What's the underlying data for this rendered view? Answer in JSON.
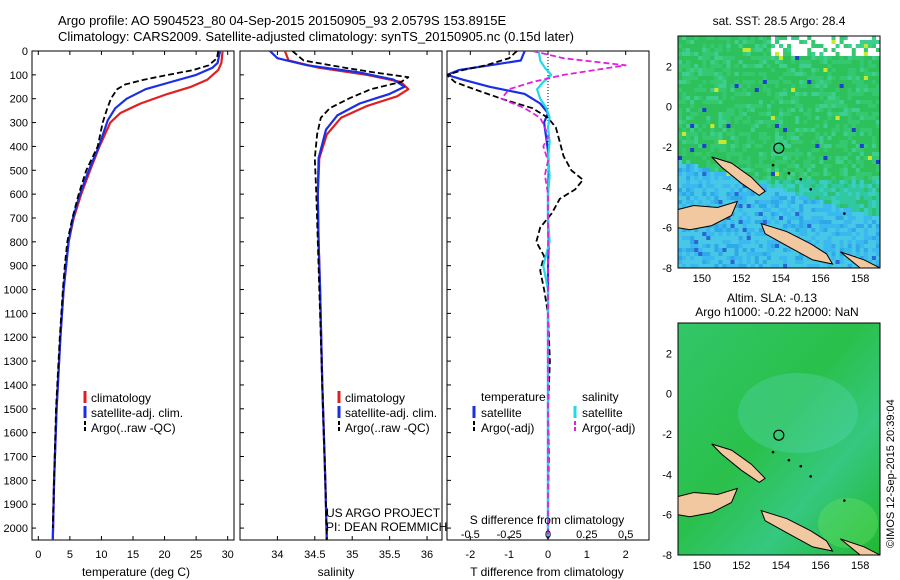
{
  "header": {
    "line1": "Argo profile: AO 5904523_80 04-Sep-2015 20150905_93 2.0579S 153.8915E",
    "line2": "Climatology: CARS2009. Satellite-adjusted climatology: synTS_20150905.nc (0.15d later)"
  },
  "colors": {
    "climatology": "#e02020",
    "satellite": "#1a2ee6",
    "argo": "#000000",
    "cyan": "#22d8e8",
    "magenta": "#e020e0",
    "land": "#f2c8a0"
  },
  "footer": {
    "project": "US ARGO PROJECT",
    "pi": "PI: DEAN ROEMMICH",
    "timestamp": "©IMOS 12-Sep-2015 20:39:04"
  },
  "chart_data": [
    {
      "type": "line",
      "id": "temperature",
      "xlabel": "temperature (deg C)",
      "xlim": [
        -1,
        31
      ],
      "xticks": [
        "0",
        "5",
        "10",
        "15",
        "20",
        "25",
        "30"
      ],
      "ylim": [
        0,
        2050
      ],
      "yticks": [
        "0",
        "100",
        "200",
        "300",
        "400",
        "500",
        "600",
        "700",
        "800",
        "900",
        "1000",
        "1100",
        "1200",
        "1300",
        "1400",
        "1500",
        "1600",
        "1700",
        "1800",
        "1900",
        "2000"
      ],
      "legend": [
        "climatology",
        "satellite-adj. clim.",
        "Argo(..raw -QC)"
      ],
      "series": [
        {
          "name": "climatology",
          "depth": [
            0,
            50,
            80,
            120,
            150,
            180,
            220,
            260,
            300,
            400,
            500,
            600,
            700,
            800,
            900,
            1000,
            1200,
            1500,
            1800,
            2050
          ],
          "values": [
            29.2,
            29.0,
            28.5,
            26.8,
            24.2,
            20.5,
            16.2,
            13.0,
            11.4,
            9.7,
            8.2,
            6.8,
            5.6,
            4.8,
            4.4,
            4.0,
            3.5,
            2.9,
            2.5,
            2.3
          ]
        },
        {
          "name": "satellite",
          "depth": [
            0,
            50,
            70,
            100,
            130,
            160,
            200,
            240,
            290,
            400,
            500,
            600,
            700,
            800,
            900,
            1000,
            1200,
            1500,
            1800,
            2050
          ],
          "values": [
            28.8,
            28.4,
            27.6,
            25.0,
            21.0,
            17.0,
            14.0,
            12.2,
            11.0,
            9.6,
            8.0,
            6.6,
            5.5,
            4.8,
            4.4,
            4.0,
            3.5,
            2.9,
            2.5,
            2.3
          ]
        },
        {
          "name": "argo",
          "depth": [
            0,
            30,
            60,
            80,
            100,
            120,
            140,
            160,
            200,
            250,
            300,
            400,
            500,
            600,
            700,
            800,
            900,
            1000,
            1200,
            1500,
            1800,
            2000
          ],
          "values": [
            28.5,
            28.3,
            27.0,
            24.5,
            20.5,
            16.8,
            13.8,
            12.5,
            11.5,
            10.8,
            10.2,
            9.4,
            7.6,
            6.4,
            5.4,
            4.6,
            4.2,
            3.9,
            3.4,
            2.8,
            2.5,
            2.3
          ]
        }
      ]
    },
    {
      "type": "line",
      "id": "salinity",
      "xlabel": "salinity",
      "xlim": [
        33.5,
        36.2
      ],
      "xticks": [
        "34",
        "34.5",
        "35",
        "35.5",
        "36"
      ],
      "ylim": [
        0,
        2050
      ],
      "legend": [
        "climatology",
        "satellite-adj. clim.",
        "Argo(..raw -QC)"
      ],
      "series": [
        {
          "name": "climatology",
          "depth": [
            0,
            40,
            70,
            100,
            130,
            160,
            190,
            230,
            280,
            350,
            450,
            600,
            800,
            1000,
            1400,
            1800,
            2050
          ],
          "values": [
            34.1,
            34.15,
            34.55,
            35.2,
            35.65,
            35.75,
            35.6,
            35.2,
            34.85,
            34.66,
            34.56,
            34.54,
            34.55,
            34.57,
            34.6,
            34.64,
            34.66
          ]
        },
        {
          "name": "satellite",
          "depth": [
            0,
            30,
            60,
            90,
            120,
            150,
            180,
            220,
            270,
            330,
            450,
            600,
            800,
            1000,
            1400,
            1800,
            2050
          ],
          "values": [
            33.9,
            34.0,
            34.4,
            35.1,
            35.55,
            35.7,
            35.5,
            35.1,
            34.8,
            34.65,
            34.55,
            34.54,
            34.55,
            34.57,
            34.6,
            34.64,
            34.66
          ]
        },
        {
          "name": "argo",
          "depth": [
            0,
            40,
            70,
            90,
            110,
            130,
            160,
            200,
            240,
            280,
            350,
            450,
            600,
            800,
            1000,
            1400,
            1800,
            2050
          ],
          "values": [
            34.2,
            34.35,
            34.9,
            35.3,
            35.75,
            35.65,
            35.25,
            34.95,
            34.7,
            34.58,
            34.53,
            34.5,
            34.52,
            34.54,
            34.56,
            34.6,
            34.64,
            34.66
          ]
        }
      ]
    },
    {
      "type": "line",
      "id": "difference",
      "xlabel_top": "S difference from climatology",
      "xlabel_bottom": "T difference from climatology",
      "xlim": [
        -2.6,
        2.6
      ],
      "xticks_T": [
        "-2",
        "-1",
        "0",
        "1",
        "2"
      ],
      "xticks_S": [
        "-0.5",
        "-0.25",
        "0",
        "0.25",
        "0.5"
      ],
      "ylim": [
        0,
        2050
      ],
      "legend_left_title": "temperature",
      "legend_right_title": "salinity",
      "legend": [
        "satellite",
        "Argo(-adj)",
        "satellite",
        "Argo(-adj)"
      ],
      "series": [
        {
          "name": "T satellite",
          "depth": [
            0,
            40,
            60,
            80,
            100,
            120,
            150,
            180,
            220,
            260,
            300,
            360,
            420,
            500,
            600,
            700,
            800,
            900,
            1000,
            1200,
            1500,
            1800,
            2050
          ],
          "values": [
            -0.6,
            -0.7,
            -1.5,
            -2.3,
            -2.6,
            -2.2,
            -1.5,
            -0.6,
            -0.2,
            0.0,
            -0.1,
            -0.05,
            0.0,
            0.02,
            0.0,
            0.0,
            0.02,
            0.0,
            0.0,
            0.0,
            0.0,
            0.0,
            0.0
          ]
        },
        {
          "name": "T argo",
          "depth": [
            0,
            30,
            60,
            80,
            100,
            130,
            160,
            200,
            240,
            280,
            320,
            380,
            440,
            500,
            540,
            580,
            620,
            680,
            740,
            800,
            860,
            920,
            1000,
            1100,
            1300,
            1500,
            1700,
            1900,
            2050
          ],
          "values": [
            -0.8,
            -1.0,
            -1.6,
            -2.2,
            -2.6,
            -2.4,
            -1.9,
            -1.2,
            -0.4,
            0.0,
            0.2,
            0.3,
            0.4,
            0.6,
            0.9,
            0.7,
            0.3,
            0.1,
            -0.2,
            -0.3,
            -0.1,
            -0.2,
            -0.1,
            0.0,
            0.05,
            0.0,
            0.02,
            0.0,
            0.0
          ]
        },
        {
          "name": "S satellite",
          "depth": [
            0,
            40,
            70,
            100,
            130,
            160,
            200,
            240,
            280,
            320,
            380,
            450,
            520,
            600,
            700,
            800,
            900,
            1000,
            1200,
            1500,
            1800,
            2050
          ],
          "values": [
            -0.06,
            -0.05,
            -0.02,
            0.02,
            -0.03,
            -0.07,
            -0.05,
            -0.01,
            0.01,
            0.0,
            0.01,
            0.0,
            0.01,
            0.0,
            0.0,
            0.01,
            -0.03,
            0.0,
            0.0,
            0.0,
            0.0,
            0.0
          ]
        },
        {
          "name": "S argo",
          "depth": [
            0,
            30,
            60,
            80,
            100,
            130,
            160,
            200,
            240,
            280,
            320,
            360,
            400,
            460,
            520,
            600,
            700,
            800,
            900,
            1000,
            1300,
            1600,
            1900,
            2050
          ],
          "values": [
            -0.1,
            0.1,
            0.5,
            0.3,
            0.1,
            -0.1,
            -0.25,
            -0.3,
            -0.15,
            -0.05,
            -0.02,
            0.0,
            -0.03,
            0.0,
            -0.02,
            0.0,
            0.0,
            0.0,
            0.0,
            0.0,
            0.0,
            0.0,
            0.0,
            0.0
          ]
        }
      ]
    },
    {
      "type": "heatmap",
      "id": "sst-map",
      "title": "sat. SST: 28.5 Argo: 28.4",
      "xlim": [
        148.8,
        159
      ],
      "ylim": [
        -8,
        3.5
      ],
      "xticks": [
        "150",
        "152",
        "154",
        "156",
        "158"
      ],
      "yticks": [
        "2",
        "0",
        "-2",
        "-4",
        "-6",
        "-8"
      ],
      "marker": [
        153.89,
        -2.06
      ]
    },
    {
      "type": "heatmap",
      "id": "sla-map",
      "title": "Altim. SLA: -0.13",
      "subtitle": "Argo h1000: -0.22 h2000: NaN",
      "xlim": [
        148.8,
        159
      ],
      "ylim": [
        -8,
        3.5
      ],
      "xticks": [
        "150",
        "152",
        "154",
        "156",
        "158"
      ],
      "yticks": [
        "2",
        "0",
        "-2",
        "-4",
        "-6",
        "-8"
      ],
      "marker": [
        153.89,
        -2.06
      ]
    }
  ]
}
